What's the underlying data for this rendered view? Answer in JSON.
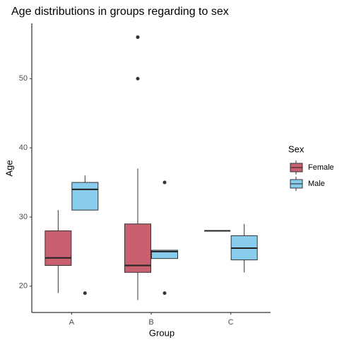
{
  "chart_data": {
    "type": "box",
    "title": "Age distributions in groups regarding to sex",
    "x_label": "Group",
    "y_label": "Age",
    "legend_title": "Sex",
    "categories": [
      "A",
      "B",
      "C"
    ],
    "series": [
      {
        "name": "Female",
        "color": "#c8606f",
        "min": [
          19,
          18,
          28
        ],
        "q1": [
          23,
          22,
          28
        ],
        "median": [
          24.1,
          23,
          28
        ],
        "q3": [
          28,
          29,
          28
        ],
        "max": [
          31,
          37,
          28
        ],
        "outliers": [
          [],
          [
            50,
            56
          ],
          []
        ]
      },
      {
        "name": "Male",
        "color": "#88ccee",
        "min": [
          31,
          24,
          22
        ],
        "q1": [
          31,
          24,
          23.8
        ],
        "median": [
          34,
          25,
          25.5
        ],
        "q3": [
          35,
          25.2,
          27.3
        ],
        "max": [
          36,
          25.2,
          29
        ],
        "outliers": [
          [
            19
          ],
          [
            35,
            19
          ],
          []
        ]
      }
    ],
    "ylim": [
      16.2,
      58
    ],
    "yticks": [
      20,
      30,
      40,
      50
    ],
    "legend": "right"
  }
}
